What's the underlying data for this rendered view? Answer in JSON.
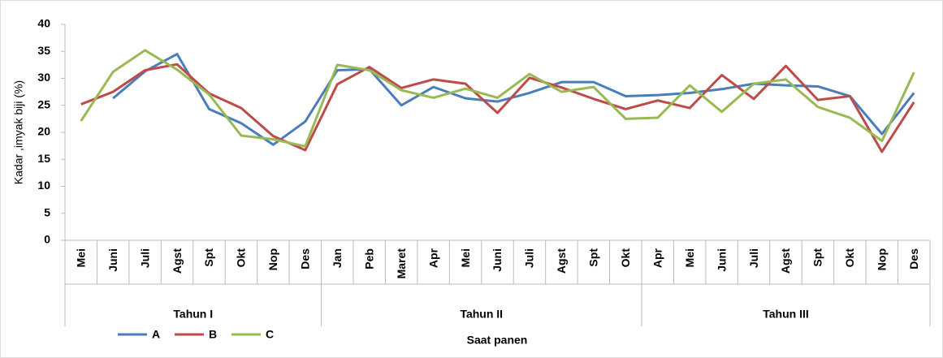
{
  "chart_data": {
    "type": "line",
    "y_label": "Kadar ,imyak biji (%)",
    "x_label": "Saat panen",
    "groups": [
      {
        "label": "Tahun I",
        "categories": [
          "Mei",
          "Juni",
          "Juli",
          "Agst",
          "Spt",
          "Okt",
          "Nop",
          "Des"
        ]
      },
      {
        "label": "Tahun II",
        "categories": [
          "Jan",
          "Peb",
          "Maret",
          "Apr",
          "Mei",
          "Juni",
          "Juli",
          "Agst",
          "Spt",
          "Okt"
        ]
      },
      {
        "label": "Tahun III",
        "categories": [
          "Apr",
          "Mei",
          "Juni",
          "Juli",
          "Agst",
          "Spt",
          "Okt",
          "Nop",
          "Des"
        ]
      }
    ],
    "series": [
      {
        "name": "A",
        "color": "#4a7ebb",
        "values": [
          null,
          26.3,
          31.3,
          34.5,
          24.3,
          21.7,
          17.7,
          22,
          31.5,
          31.7,
          25,
          28.4,
          26.3,
          25.7,
          27.3,
          29.3,
          29.3,
          26.7,
          26.9,
          27.3,
          28,
          29,
          28.7,
          28.5,
          26.7,
          19.7,
          27.3
        ]
      },
      {
        "name": "B",
        "color": "#be4b48",
        "values": [
          25.2,
          27.5,
          31.5,
          32.6,
          27.2,
          24.5,
          19.3,
          16.7,
          28.9,
          32.1,
          28.2,
          29.8,
          29,
          23.6,
          30.1,
          28.3,
          26.2,
          24.3,
          25.9,
          24.5,
          30.6,
          26.2,
          32.3,
          26,
          26.7,
          16.4,
          25.6
        ]
      },
      {
        "name": "C",
        "color": "#98b954",
        "values": [
          22.1,
          31.2,
          35.2,
          31.6,
          27,
          19.4,
          18.7,
          17.4,
          32.5,
          31.5,
          27.8,
          26.4,
          28.1,
          26.4,
          30.8,
          27.5,
          28.4,
          22.5,
          22.7,
          28.7,
          23.8,
          29,
          29.8,
          24.7,
          22.7,
          18.4,
          31.1
        ]
      }
    ],
    "ylim": [
      0,
      40
    ],
    "yticks": [
      0,
      5,
      10,
      15,
      20,
      25,
      30,
      35,
      40
    ],
    "grid": false,
    "legend": "bottom-left"
  }
}
